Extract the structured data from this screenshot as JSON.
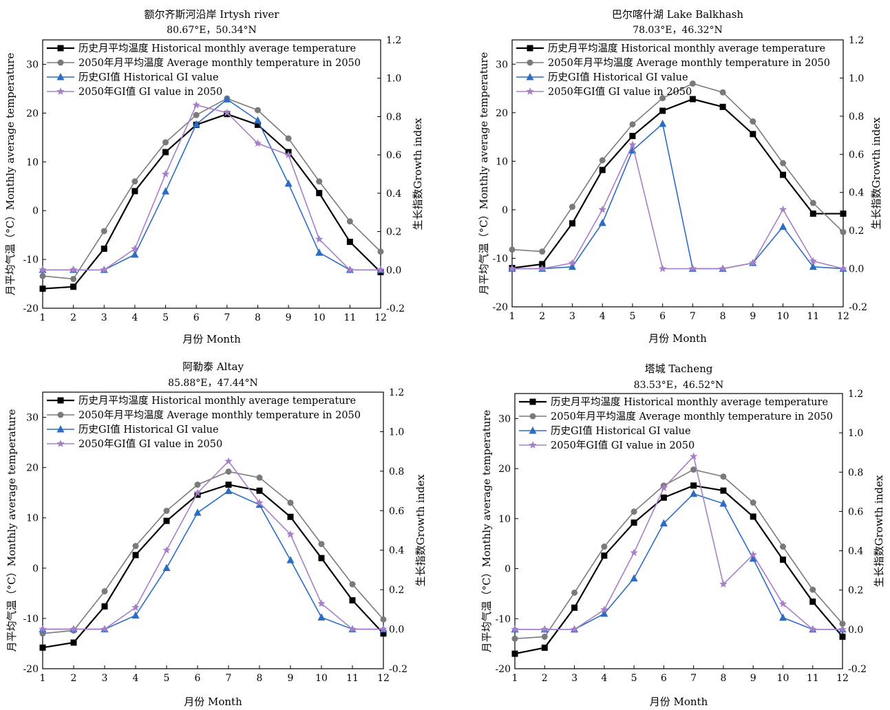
{
  "chart_data": [
    {
      "type": "line",
      "title": "额尔齐斯河沿岸 Irtysh river",
      "subtitle": "80.67°E，50.34°N",
      "xlabel": "月份 Month",
      "ylabel": "月平均气温（°C）Monthly average temperature",
      "y2label": "生长指数Growth index",
      "xlim": [
        1,
        12
      ],
      "ylim": [
        -20,
        35
      ],
      "y2lim": [
        -0.2,
        1.2
      ],
      "x_ticks": [
        "1",
        "2",
        "3",
        "4",
        "5",
        "6",
        "7",
        "8",
        "9",
        "10",
        "11",
        "12"
      ],
      "y_ticks": [
        "-20",
        "-10",
        "0",
        "10",
        "20",
        "30"
      ],
      "y2_ticks": [
        "-0.2",
        "0.0",
        "0.2",
        "0.4",
        "0.6",
        "0.8",
        "1.0",
        "1.2"
      ],
      "legend_placement": "top-left",
      "grid": false,
      "x": [
        1,
        2,
        3,
        4,
        5,
        6,
        7,
        8,
        9,
        10,
        11,
        12
      ],
      "series": [
        {
          "name": "历史月平均温度 Historical monthly average temperature",
          "axis": "left",
          "color": "#000000",
          "marker": "square",
          "values": [
            -16.0,
            -15.6,
            -7.8,
            4.0,
            12.0,
            17.6,
            19.8,
            17.6,
            12.0,
            3.6,
            -6.4,
            -12.6
          ]
        },
        {
          "name": "2050年月平均温度 Average monthly temperature in 2050",
          "axis": "left",
          "color": "#7a7a7a",
          "marker": "circle",
          "values": [
            -13.4,
            -14.0,
            -4.2,
            6.0,
            14.0,
            19.6,
            23.0,
            20.6,
            14.8,
            6.0,
            -2.2,
            -8.4
          ]
        },
        {
          "name": "历史GI值 Historical GI value",
          "axis": "right",
          "color": "#2b6cc4",
          "marker": "triangle",
          "values": [
            0.0,
            0.0,
            0.0,
            0.08,
            0.41,
            0.76,
            0.89,
            0.78,
            0.45,
            0.09,
            0.0,
            0.0
          ]
        },
        {
          "name": "2050年GI值 GI value in 2050",
          "axis": "right",
          "color": "#a77fc9",
          "marker": "star",
          "values": [
            0.0,
            0.0,
            0.0,
            0.11,
            0.5,
            0.86,
            0.82,
            0.66,
            0.6,
            0.16,
            0.0,
            0.0
          ]
        }
      ]
    },
    {
      "type": "line",
      "title": "巴尔喀什湖 Lake Balkhash",
      "subtitle": "78.03°E，46.32°N",
      "xlabel": "月份 Month",
      "ylabel": "月平均气温（°C）Monthly average temperature",
      "y2label": "生长指数Growth index",
      "xlim": [
        1,
        12
      ],
      "ylim": [
        -20,
        35
      ],
      "y2lim": [
        -0.2,
        1.2
      ],
      "x_ticks": [
        "1",
        "2",
        "3",
        "4",
        "5",
        "6",
        "7",
        "8",
        "9",
        "10",
        "11",
        "12"
      ],
      "y_ticks": [
        "-20",
        "-10",
        "0",
        "10",
        "20",
        "30"
      ],
      "y2_ticks": [
        "-0.2",
        "0.0",
        "0.2",
        "0.4",
        "0.6",
        "0.8",
        "1.0",
        "1.2"
      ],
      "legend_placement": "top-left",
      "grid": false,
      "x": [
        1,
        2,
        3,
        4,
        5,
        6,
        7,
        8,
        9,
        10,
        11,
        12
      ],
      "series": [
        {
          "name": "历史月平均温度 Historical monthly average temperature",
          "axis": "left",
          "color": "#000000",
          "marker": "square",
          "values": [
            -12.0,
            -11.2,
            -2.8,
            8.2,
            15.2,
            20.4,
            22.8,
            21.2,
            15.6,
            7.2,
            -0.8,
            -0.8
          ]
        },
        {
          "name": "2050年月平均温度 Average monthly temperature in 2050",
          "axis": "left",
          "color": "#7a7a7a",
          "marker": "circle",
          "values": [
            -8.2,
            -8.6,
            0.6,
            10.2,
            17.6,
            23.0,
            26.0,
            24.2,
            18.2,
            9.6,
            1.4,
            -4.6
          ]
        },
        {
          "name": "历史GI值 Historical GI value",
          "axis": "right",
          "color": "#2b6cc4",
          "marker": "triangle",
          "values": [
            0.0,
            0.0,
            0.01,
            0.24,
            0.62,
            0.76,
            0.0,
            0.0,
            0.03,
            0.22,
            0.01,
            0.0
          ]
        },
        {
          "name": "2050年GI值 GI value in 2050",
          "axis": "right",
          "color": "#a77fc9",
          "marker": "star",
          "values": [
            0.0,
            0.0,
            0.03,
            0.31,
            0.65,
            0.0,
            0.0,
            0.0,
            0.03,
            0.31,
            0.04,
            0.0
          ]
        }
      ]
    },
    {
      "type": "line",
      "title": "阿勒泰 Altay",
      "subtitle": "85.88°E，47.44°N",
      "xlabel": "月份 Month",
      "ylabel": "月平均气温（°C）Monthly average temperature",
      "y2label": "生长指数Growth index",
      "xlim": [
        1,
        12
      ],
      "ylim": [
        -20,
        35
      ],
      "y2lim": [
        -0.2,
        1.2
      ],
      "x_ticks": [
        "1",
        "2",
        "3",
        "4",
        "5",
        "6",
        "7",
        "8",
        "9",
        "10",
        "11",
        "12"
      ],
      "y_ticks": [
        "-20",
        "-10",
        "0",
        "10",
        "20",
        "30"
      ],
      "y2_ticks": [
        "-0.2",
        "0.0",
        "0.2",
        "0.4",
        "0.6",
        "0.8",
        "1.0",
        "1.2"
      ],
      "legend_placement": "top-left",
      "grid": false,
      "x": [
        1,
        2,
        3,
        4,
        5,
        6,
        7,
        8,
        9,
        10,
        11,
        12
      ],
      "series": [
        {
          "name": "历史月平均温度 Historical monthly average temperature",
          "axis": "left",
          "color": "#000000",
          "marker": "square",
          "values": [
            -15.8,
            -14.8,
            -7.6,
            2.6,
            9.4,
            14.6,
            16.6,
            15.4,
            10.2,
            2.0,
            -6.4,
            -13.0
          ]
        },
        {
          "name": "2050年月平均温度 Average monthly temperature in 2050",
          "axis": "left",
          "color": "#7a7a7a",
          "marker": "circle",
          "values": [
            -13.0,
            -12.4,
            -4.6,
            4.4,
            11.4,
            16.6,
            19.2,
            18.0,
            13.0,
            4.8,
            -3.2,
            -10.2
          ]
        },
        {
          "name": "历史GI值 Historical GI value",
          "axis": "right",
          "color": "#2b6cc4",
          "marker": "triangle",
          "values": [
            0.0,
            0.0,
            0.0,
            0.07,
            0.31,
            0.59,
            0.7,
            0.63,
            0.35,
            0.06,
            0.0,
            0.0
          ]
        },
        {
          "name": "2050年GI值 GI value in 2050",
          "axis": "right",
          "color": "#a77fc9",
          "marker": "star",
          "values": [
            0.0,
            0.0,
            0.0,
            0.11,
            0.4,
            0.69,
            0.85,
            0.64,
            0.48,
            0.13,
            0.0,
            0.0
          ]
        }
      ]
    },
    {
      "type": "line",
      "title": "塔城 Tacheng",
      "subtitle": "83.53°E，46.52°N",
      "xlabel": "月份 Month",
      "ylabel": "月平均气温（°C）Monthly average temperature",
      "y2label": "生长指数Growth index",
      "xlim": [
        1,
        12
      ],
      "ylim": [
        -20,
        35
      ],
      "y2lim": [
        -0.2,
        1.2
      ],
      "x_ticks": [
        "1",
        "2",
        "3",
        "4",
        "5",
        "6",
        "7",
        "8",
        "9",
        "10",
        "11",
        "12"
      ],
      "y_ticks": [
        "-20",
        "-10",
        "0",
        "10",
        "20",
        "30"
      ],
      "y2_ticks": [
        "-0.2",
        "0.0",
        "0.2",
        "0.4",
        "0.6",
        "0.8",
        "1.0",
        "1.2"
      ],
      "legend_placement": "top-left",
      "grid": false,
      "x": [
        1,
        2,
        3,
        4,
        5,
        6,
        7,
        8,
        9,
        10,
        11,
        12
      ],
      "series": [
        {
          "name": "历史月平均温度 Historical monthly average temperature",
          "axis": "left",
          "color": "#000000",
          "marker": "square",
          "values": [
            -17.0,
            -15.8,
            -7.8,
            2.6,
            9.2,
            14.2,
            16.6,
            15.6,
            10.4,
            1.8,
            -6.6,
            -13.6
          ]
        },
        {
          "name": "2050年月平均温度 Average monthly temperature in 2050",
          "axis": "left",
          "color": "#7a7a7a",
          "marker": "circle",
          "values": [
            -14.0,
            -13.6,
            -4.8,
            4.4,
            11.4,
            16.6,
            19.8,
            18.4,
            13.2,
            4.4,
            -4.2,
            -11.0
          ]
        },
        {
          "name": "历史GI值 Historical GI value",
          "axis": "right",
          "color": "#2b6cc4",
          "marker": "triangle",
          "values": [
            0.0,
            0.0,
            0.0,
            0.08,
            0.26,
            0.54,
            0.69,
            0.64,
            0.36,
            0.06,
            0.0,
            0.0
          ]
        },
        {
          "name": "2050年GI值 GI value in 2050",
          "axis": "right",
          "color": "#a77fc9",
          "marker": "star",
          "values": [
            0.0,
            0.0,
            0.0,
            0.1,
            0.39,
            0.72,
            0.88,
            0.23,
            0.38,
            0.13,
            0.0,
            0.0
          ]
        }
      ]
    }
  ]
}
